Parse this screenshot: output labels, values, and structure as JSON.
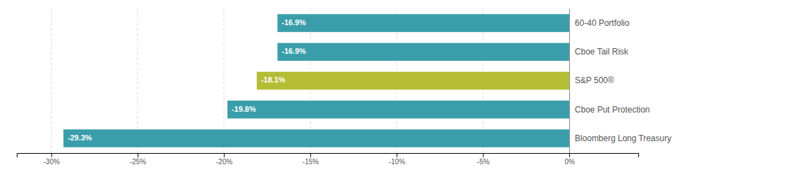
{
  "chart_data": {
    "type": "bar",
    "orientation": "horizontal",
    "categories": [
      "Bloomberg Long Treasury",
      "Cboe Put Protection",
      "S&P 500®",
      "Cboe Tail Risk",
      "60-40 Portfolio"
    ],
    "values": [
      -29.3,
      -19.8,
      -18.1,
      -16.9,
      -16.9
    ],
    "value_labels": [
      "-29.3%",
      "-19.8%",
      "-18.1%",
      "-16.9%",
      "-16.9%"
    ],
    "data_labels": true,
    "colors": [
      "#3a9eaa",
      "#3a9eaa",
      "#b5bd35",
      "#3a9eaa",
      "#3a9eaa"
    ],
    "xlim": [
      -32,
      4
    ],
    "xticks": [
      {
        "value": -30,
        "label": "-30%"
      },
      {
        "value": -25,
        "label": "-25%"
      },
      {
        "value": -20,
        "label": "-20%"
      },
      {
        "value": -15,
        "label": "-15%"
      },
      {
        "value": -10,
        "label": "-10%"
      },
      {
        "value": -5,
        "label": "-5%"
      },
      {
        "value": 0,
        "label": "0%"
      }
    ],
    "grid": true
  }
}
